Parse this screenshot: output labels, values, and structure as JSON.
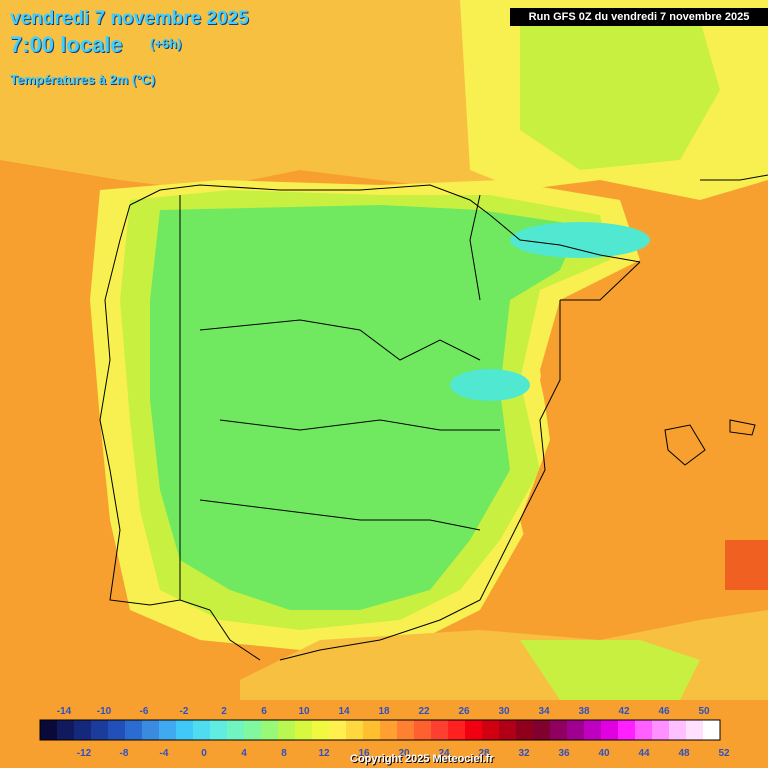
{
  "header": {
    "date": "vendredi 7 novembre 2025",
    "time": "7:00 locale",
    "offset": "(+6h)",
    "variable": "Températures à 2m (°C)",
    "run": "Run GFS 0Z du vendredi 7 novembre 2025"
  },
  "footer": {
    "copyright": "Copyright 2025 Meteociel.fr"
  },
  "legend": {
    "top_labels": [
      "-14",
      "-10",
      "-6",
      "-2",
      "2",
      "6",
      "10",
      "14",
      "18",
      "22",
      "26",
      "30",
      "34",
      "38",
      "42",
      "46",
      "50"
    ],
    "bottom_labels": [
      "-12",
      "-8",
      "-4",
      "0",
      "4",
      "8",
      "12",
      "16",
      "20",
      "24",
      "28",
      "32",
      "36",
      "40",
      "44",
      "48",
      "52"
    ],
    "colors": [
      "#0a0a3a",
      "#101a5c",
      "#14287c",
      "#1c3c9c",
      "#2050b8",
      "#2a6cd0",
      "#3a8ae0",
      "#40aaf0",
      "#40c8f8",
      "#50dcf0",
      "#60ece0",
      "#70f4c0",
      "#80f8a0",
      "#98f878",
      "#b8f850",
      "#d8f840",
      "#f0f840",
      "#fff050",
      "#ffd840",
      "#ffc030",
      "#ffa030",
      "#ff8030",
      "#ff6030",
      "#ff4030",
      "#ff2020",
      "#f00010",
      "#d00010",
      "#b00018",
      "#90001c",
      "#800030",
      "#900060",
      "#a00090",
      "#c000c0",
      "#e000e0",
      "#ff20ff",
      "#ff60ff",
      "#ff90ff",
      "#ffc0ff",
      "#ffe0ff",
      "#ffffff"
    ]
  },
  "map_colors": {
    "sea_warm": "#f7a030",
    "sea_mild": "#f8c040",
    "yellow": "#f8f050",
    "yellow_green": "#c8f040",
    "green": "#70e860",
    "cyan": "#50e8d0",
    "hot": "#f06020",
    "grid_text": "#404040",
    "border": "#000000"
  }
}
